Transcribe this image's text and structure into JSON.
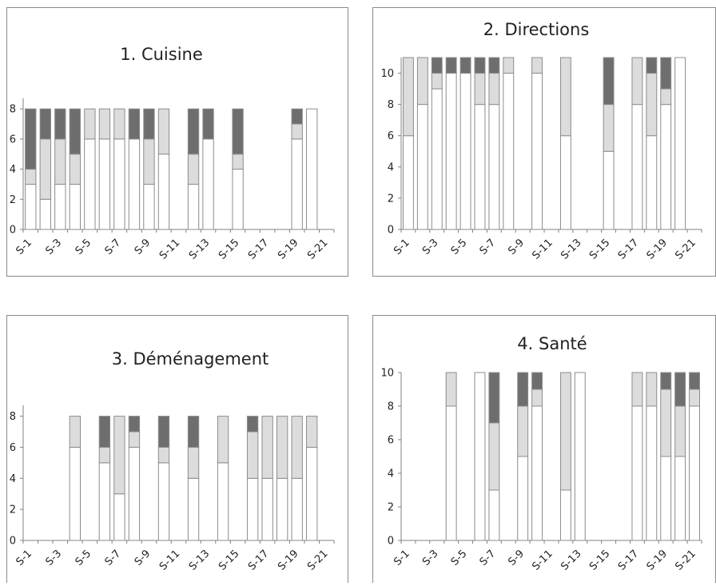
{
  "colors": {
    "frame": "#8a8a8a",
    "axis": "#808080",
    "white": "#ffffff",
    "light": "#dcdcdc",
    "dark": "#6e6e6e",
    "bar_edge": "#8c8c8c"
  },
  "series_legend": [
    "white",
    "light gray",
    "dark gray"
  ],
  "chart_data": [
    {
      "type": "bar",
      "title": "1. Cuisine",
      "stacked": true,
      "categories": [
        "S-1",
        "S-2",
        "S-3",
        "S-4",
        "S-5",
        "S-6",
        "S-7",
        "S-8",
        "S-9",
        "S-10",
        "S-11",
        "S-12",
        "S-13",
        "S-14",
        "S-15",
        "S-16",
        "S-17",
        "S-18",
        "S-19",
        "S-20",
        "S-21"
      ],
      "tick_labels": [
        "S-1",
        "S-3",
        "S-5",
        "S-7",
        "S-9",
        "S-11",
        "S-13",
        "S-15",
        "S-17",
        "S-19",
        "S-21"
      ],
      "y_ticks": [
        0,
        2,
        4,
        6,
        8
      ],
      "ylim": [
        0,
        8.7
      ],
      "series": [
        {
          "values": [
            3,
            2,
            3,
            3,
            6,
            6,
            6,
            6,
            3,
            5,
            0,
            3,
            6,
            0,
            4,
            0,
            0,
            0,
            6,
            8,
            0
          ]
        },
        {
          "values": [
            1,
            4,
            3,
            2,
            2,
            2,
            2,
            0,
            3,
            3,
            0,
            2,
            0,
            0,
            1,
            0,
            0,
            0,
            1,
            0,
            0
          ]
        },
        {
          "values": [
            4,
            2,
            2,
            3,
            0,
            0,
            0,
            2,
            2,
            0,
            0,
            3,
            2,
            0,
            3,
            0,
            0,
            0,
            1,
            0,
            0
          ]
        }
      ]
    },
    {
      "type": "bar",
      "title": "2. Directions",
      "stacked": true,
      "categories": [
        "S-1",
        "S-2",
        "S-3",
        "S-4",
        "S-5",
        "S-6",
        "S-7",
        "S-8",
        "S-9",
        "S-10",
        "S-11",
        "S-12",
        "S-13",
        "S-14",
        "S-15",
        "S-16",
        "S-17",
        "S-18",
        "S-19",
        "S-20",
        "S-21"
      ],
      "tick_labels": [
        "S-1",
        "S-3",
        "S-5",
        "S-7",
        "S-9",
        "S-11",
        "S-13",
        "S-15",
        "S-17",
        "S-19",
        "S-21"
      ],
      "y_ticks": [
        0,
        2,
        4,
        6,
        8,
        10
      ],
      "ylim": [
        0,
        11
      ],
      "series": [
        {
          "values": [
            6,
            8,
            9,
            10,
            10,
            8,
            8,
            10,
            0,
            10,
            0,
            6,
            0,
            0,
            5,
            0,
            8,
            6,
            8,
            11,
            0
          ]
        },
        {
          "values": [
            5,
            3,
            1,
            0,
            0,
            2,
            2,
            1,
            0,
            1,
            0,
            5,
            0,
            0,
            3,
            0,
            3,
            4,
            1,
            0,
            0
          ]
        },
        {
          "values": [
            0,
            0,
            1,
            1,
            1,
            1,
            1,
            0,
            0,
            0,
            0,
            0,
            0,
            0,
            3,
            0,
            0,
            1,
            2,
            0,
            0
          ]
        }
      ]
    },
    {
      "type": "bar",
      "title": "3. Déménagement",
      "stacked": true,
      "categories": [
        "S-1",
        "S-2",
        "S-3",
        "S-4",
        "S-5",
        "S-6",
        "S-7",
        "S-8",
        "S-9",
        "S-10",
        "S-11",
        "S-12",
        "S-13",
        "S-14",
        "S-15",
        "S-16",
        "S-17",
        "S-18",
        "S-19",
        "S-20",
        "S-21"
      ],
      "tick_labels": [
        "S-1",
        "S-3",
        "S-5",
        "S-7",
        "S-9",
        "S-11",
        "S-13",
        "S-15",
        "S-17",
        "S-19",
        "S-21"
      ],
      "y_ticks": [
        0,
        2,
        4,
        6,
        8
      ],
      "ylim": [
        0,
        8.7
      ],
      "series": [
        {
          "values": [
            0,
            0,
            0,
            6,
            0,
            5,
            3,
            6,
            0,
            5,
            0,
            4,
            0,
            5,
            0,
            4,
            4,
            4,
            4,
            6,
            0
          ]
        },
        {
          "values": [
            0,
            0,
            0,
            2,
            0,
            1,
            5,
            1,
            0,
            1,
            0,
            2,
            0,
            3,
            0,
            3,
            4,
            4,
            4,
            2,
            0
          ]
        },
        {
          "values": [
            0,
            0,
            0,
            0,
            0,
            2,
            0,
            1,
            0,
            2,
            0,
            2,
            0,
            0,
            0,
            1,
            0,
            0,
            0,
            0,
            0
          ]
        }
      ]
    },
    {
      "type": "bar",
      "title": "4. Santé",
      "stacked": true,
      "categories": [
        "S-1",
        "S-2",
        "S-3",
        "S-4",
        "S-5",
        "S-6",
        "S-7",
        "S-8",
        "S-9",
        "S-10",
        "S-11",
        "S-12",
        "S-13",
        "S-14",
        "S-15",
        "S-16",
        "S-17",
        "S-18",
        "S-19",
        "S-20",
        "S-21"
      ],
      "tick_labels": [
        "S-1",
        "S-3",
        "S-5",
        "S-7",
        "S-9",
        "S-11",
        "S-13",
        "S-15",
        "S-17",
        "S-19",
        "S-21"
      ],
      "y_ticks": [
        0,
        2,
        4,
        6,
        8,
        10
      ],
      "ylim": [
        0,
        10
      ],
      "series": [
        {
          "values": [
            0,
            0,
            0,
            8,
            0,
            10,
            3,
            0,
            5,
            8,
            0,
            3,
            10,
            0,
            0,
            0,
            8,
            8,
            5,
            5,
            8
          ]
        },
        {
          "values": [
            0,
            0,
            0,
            2,
            0,
            0,
            4,
            0,
            3,
            1,
            0,
            7,
            0,
            0,
            0,
            0,
            2,
            2,
            4,
            3,
            1
          ]
        },
        {
          "values": [
            0,
            0,
            0,
            0,
            0,
            0,
            3,
            0,
            2,
            1,
            0,
            0,
            0,
            0,
            0,
            0,
            0,
            0,
            1,
            2,
            1
          ]
        }
      ]
    }
  ]
}
